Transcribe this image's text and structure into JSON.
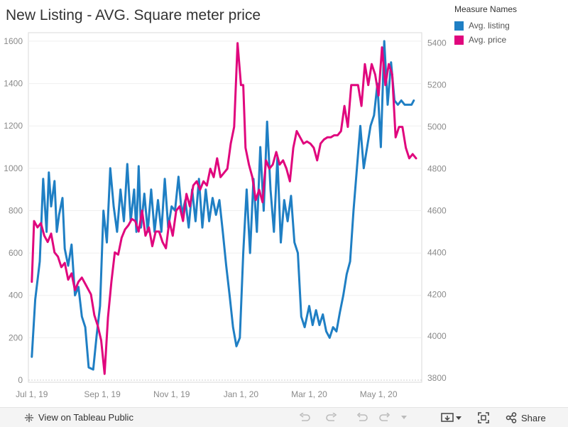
{
  "title": "New Listing - AVG. Square meter price",
  "legend": {
    "title": "Measure Names",
    "items": [
      {
        "label": "Avg. listing",
        "color": "#1f7fc4"
      },
      {
        "label": "Avg. price",
        "color": "#e0067d"
      }
    ]
  },
  "footer": {
    "view_label": "View on Tableau Public",
    "share_label": "Share",
    "icons": [
      "tableau-icon",
      "undo-icon",
      "redo-icon",
      "revert-icon",
      "revert-dropdown-icon",
      "download-icon",
      "fullscreen-icon",
      "share-icon"
    ]
  },
  "chart_data": {
    "type": "line",
    "x_ticks": [
      "Jul 1, 19",
      "Sep 1, 19",
      "Nov 1, 19",
      "Jan 1, 20",
      "Mar 1, 20",
      "May 1, 20"
    ],
    "x_range": [
      "2019-06-28",
      "2020-06-08"
    ],
    "y_left": {
      "ticks": [
        0,
        200,
        400,
        600,
        800,
        1000,
        1200,
        1400,
        1600
      ],
      "range": [
        -10,
        1640
      ]
    },
    "y_right": {
      "ticks": [
        3800,
        4000,
        4200,
        4400,
        4600,
        4800,
        5000,
        5200,
        5400
      ],
      "range": [
        3780,
        5450
      ]
    },
    "grid": true,
    "series": [
      {
        "name": "Avg. listing",
        "axis": "left",
        "color": "#1f7fc4",
        "x": [
          "2019-07-01",
          "2019-07-04",
          "2019-07-08",
          "2019-07-11",
          "2019-07-14",
          "2019-07-16",
          "2019-07-18",
          "2019-07-21",
          "2019-07-23",
          "2019-07-25",
          "2019-07-28",
          "2019-07-30",
          "2019-08-02",
          "2019-08-05",
          "2019-08-08",
          "2019-08-11",
          "2019-08-14",
          "2019-08-17",
          "2019-08-20",
          "2019-08-24",
          "2019-08-27",
          "2019-08-30",
          "2019-09-02",
          "2019-09-05",
          "2019-09-08",
          "2019-09-11",
          "2019-09-14",
          "2019-09-17",
          "2019-09-20",
          "2019-09-23",
          "2019-09-26",
          "2019-09-29",
          "2019-10-01",
          "2019-10-03",
          "2019-10-05",
          "2019-10-08",
          "2019-10-11",
          "2019-10-14",
          "2019-10-17",
          "2019-10-20",
          "2019-10-23",
          "2019-10-26",
          "2019-10-29",
          "2019-11-01",
          "2019-11-04",
          "2019-11-07",
          "2019-11-10",
          "2019-11-13",
          "2019-11-16",
          "2019-11-19",
          "2019-11-22",
          "2019-11-25",
          "2019-11-28",
          "2019-12-01",
          "2019-12-04",
          "2019-12-07",
          "2019-12-10",
          "2019-12-13",
          "2019-12-16",
          "2019-12-19",
          "2019-12-22",
          "2019-12-25",
          "2019-12-28",
          "2019-12-31",
          "2020-01-03",
          "2020-01-06",
          "2020-01-09",
          "2020-01-12",
          "2020-01-15",
          "2020-01-18",
          "2020-01-21",
          "2020-01-24",
          "2020-01-27",
          "2020-01-30",
          "2020-02-02",
          "2020-02-05",
          "2020-02-08",
          "2020-02-11",
          "2020-02-14",
          "2020-02-17",
          "2020-02-20",
          "2020-02-23",
          "2020-02-26",
          "2020-03-01",
          "2020-03-04",
          "2020-03-07",
          "2020-03-10",
          "2020-03-13",
          "2020-03-16",
          "2020-03-19",
          "2020-03-22",
          "2020-03-25",
          "2020-03-28",
          "2020-03-31",
          "2020-04-03",
          "2020-04-06",
          "2020-04-09",
          "2020-04-12",
          "2020-04-15",
          "2020-04-18",
          "2020-04-21",
          "2020-04-24",
          "2020-04-27",
          "2020-04-30",
          "2020-05-03",
          "2020-05-06",
          "2020-05-09",
          "2020-05-12",
          "2020-05-15",
          "2020-05-18",
          "2020-05-21",
          "2020-05-24",
          "2020-05-27",
          "2020-05-30",
          "2020-06-01"
        ],
        "values": [
          110,
          380,
          560,
          950,
          700,
          980,
          820,
          940,
          700,
          780,
          860,
          620,
          540,
          640,
          400,
          440,
          300,
          250,
          60,
          50,
          210,
          350,
          800,
          650,
          1000,
          820,
          700,
          900,
          750,
          1020,
          750,
          900,
          700,
          1010,
          720,
          880,
          700,
          900,
          700,
          850,
          700,
          950,
          720,
          820,
          800,
          960,
          780,
          850,
          720,
          900,
          750,
          950,
          720,
          900,
          750,
          860,
          780,
          850,
          700,
          540,
          400,
          250,
          160,
          200,
          600,
          900,
          600,
          950,
          700,
          1100,
          800,
          1220,
          900,
          700,
          1050,
          650,
          850,
          750,
          870,
          650,
          600,
          300,
          250,
          350,
          260,
          330,
          260,
          310,
          230,
          200,
          250,
          230,
          320,
          400,
          500,
          560,
          800,
          1000,
          1200,
          1000,
          1100,
          1200,
          1250,
          1400,
          1100,
          1600,
          1300,
          1500,
          1320,
          1300,
          1320,
          1300,
          1300,
          1300,
          1320
        ],
        "note": ""
      },
      {
        "name": "Avg. price",
        "axis": "right",
        "color": "#e0067d",
        "x": [
          "2019-07-01",
          "2019-07-03",
          "2019-07-06",
          "2019-07-09",
          "2019-07-12",
          "2019-07-15",
          "2019-07-18",
          "2019-07-21",
          "2019-07-24",
          "2019-07-27",
          "2019-07-30",
          "2019-08-02",
          "2019-08-05",
          "2019-08-08",
          "2019-08-11",
          "2019-08-14",
          "2019-08-17",
          "2019-08-20",
          "2019-08-22",
          "2019-08-25",
          "2019-08-28",
          "2019-08-31",
          "2019-09-03",
          "2019-09-06",
          "2019-09-09",
          "2019-09-12",
          "2019-09-15",
          "2019-09-18",
          "2019-09-21",
          "2019-09-24",
          "2019-09-27",
          "2019-09-30",
          "2019-10-03",
          "2019-10-06",
          "2019-10-09",
          "2019-10-12",
          "2019-10-15",
          "2019-10-18",
          "2019-10-21",
          "2019-10-24",
          "2019-10-27",
          "2019-10-30",
          "2019-11-02",
          "2019-11-05",
          "2019-11-08",
          "2019-11-11",
          "2019-11-14",
          "2019-11-17",
          "2019-11-20",
          "2019-11-23",
          "2019-11-26",
          "2019-11-29",
          "2019-12-02",
          "2019-12-05",
          "2019-12-08",
          "2019-12-11",
          "2019-12-14",
          "2019-12-17",
          "2019-12-20",
          "2019-12-23",
          "2019-12-26",
          "2019-12-29",
          "2020-01-01",
          "2020-01-03",
          "2020-01-05",
          "2020-01-08",
          "2020-01-11",
          "2020-01-14",
          "2020-01-17",
          "2020-01-20",
          "2020-01-23",
          "2020-01-26",
          "2020-01-29",
          "2020-02-01",
          "2020-02-04",
          "2020-02-07",
          "2020-02-10",
          "2020-02-13",
          "2020-02-16",
          "2020-02-19",
          "2020-02-22",
          "2020-02-25",
          "2020-02-28",
          "2020-03-02",
          "2020-03-05",
          "2020-03-08",
          "2020-03-11",
          "2020-03-14",
          "2020-03-17",
          "2020-03-20",
          "2020-03-23",
          "2020-03-26",
          "2020-03-29",
          "2020-04-01",
          "2020-04-04",
          "2020-04-07",
          "2020-04-10",
          "2020-04-13",
          "2020-04-16",
          "2020-04-19",
          "2020-04-22",
          "2020-04-25",
          "2020-04-28",
          "2020-05-01",
          "2020-05-04",
          "2020-05-07",
          "2020-05-10",
          "2020-05-13",
          "2020-05-16",
          "2020-05-19",
          "2020-05-22",
          "2020-05-25",
          "2020-05-28",
          "2020-05-31",
          "2020-06-03"
        ],
        "values": [
          4260,
          4550,
          4520,
          4540,
          4480,
          4450,
          4490,
          4400,
          4380,
          4330,
          4350,
          4270,
          4300,
          4220,
          4260,
          4280,
          4250,
          4220,
          4200,
          4100,
          4050,
          3980,
          3820,
          4090,
          4260,
          4400,
          4390,
          4470,
          4510,
          4530,
          4560,
          4550,
          4500,
          4600,
          4480,
          4520,
          4430,
          4500,
          4500,
          4450,
          4420,
          4550,
          4480,
          4600,
          4620,
          4550,
          4680,
          4620,
          4720,
          4740,
          4700,
          4740,
          4720,
          4800,
          4760,
          4850,
          4760,
          4780,
          4800,
          4920,
          5000,
          5400,
          5200,
          5200,
          4900,
          4820,
          4760,
          4650,
          4700,
          4640,
          4840,
          4800,
          4820,
          4880,
          4820,
          4840,
          4800,
          4740,
          4900,
          4980,
          4950,
          4920,
          4930,
          4920,
          4900,
          4840,
          4920,
          4940,
          4950,
          4950,
          4960,
          4960,
          4980,
          5100,
          5000,
          5200,
          5200,
          5200,
          5100,
          5300,
          5200,
          5300,
          5250,
          5150,
          5380,
          5200,
          5300,
          5250,
          4950,
          5000,
          5000,
          4900,
          4850,
          4870,
          4850
        ]
      }
    ]
  }
}
